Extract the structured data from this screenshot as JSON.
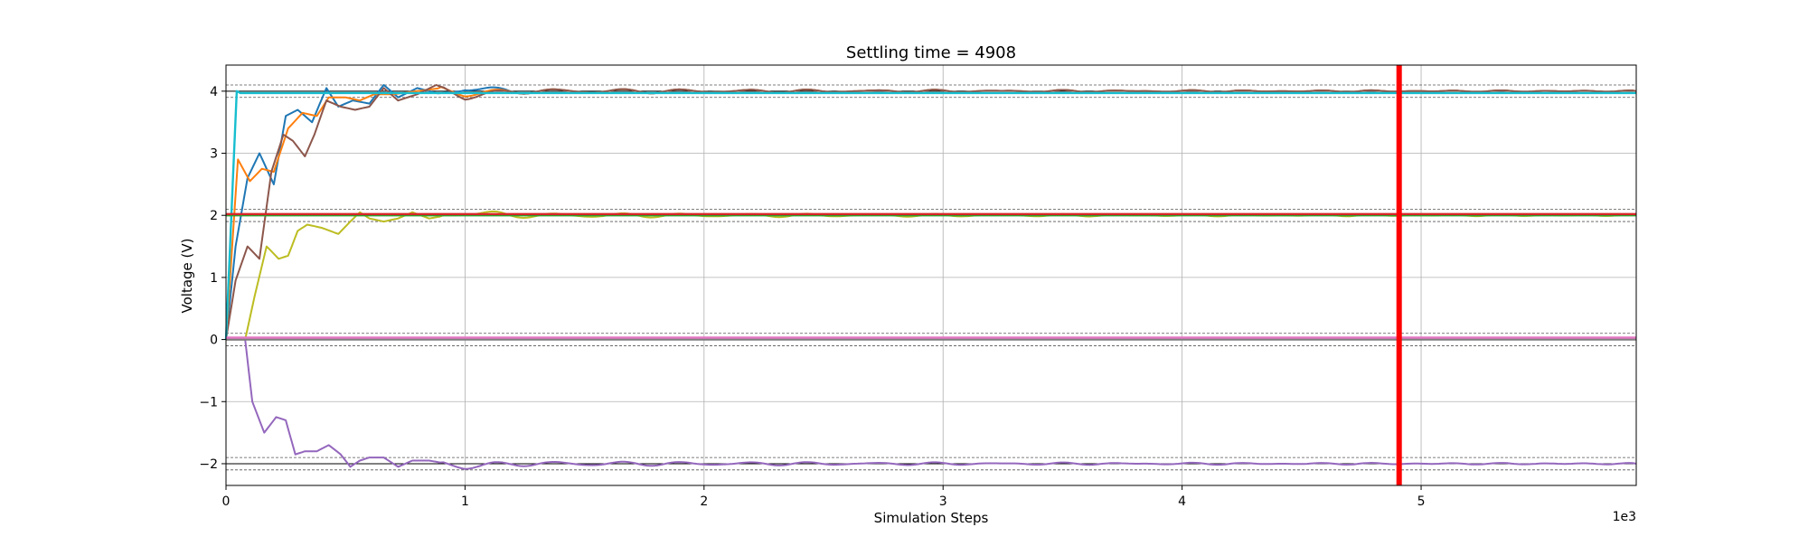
{
  "chart_data": {
    "type": "line",
    "title": "Settling time = 4908",
    "xlabel": "Simulation Steps",
    "ylabel": "Voltage (V)",
    "x_offset_label": "1e3",
    "xlim": [
      0,
      5900
    ],
    "ylim": [
      -2.35,
      4.42
    ],
    "x_ticks": [
      0,
      1000,
      2000,
      3000,
      4000,
      5000
    ],
    "x_tick_labels": [
      "0",
      "1",
      "2",
      "3",
      "4",
      "5"
    ],
    "y_ticks": [
      -2,
      -1,
      0,
      1,
      2,
      3,
      4
    ],
    "y_tick_labels": [
      "−2",
      "−1",
      "0",
      "1",
      "2",
      "3",
      "4"
    ],
    "grid": true,
    "reference_levels": [
      4,
      2,
      0,
      -2
    ],
    "tolerance_band": 0.1,
    "settling_marker": {
      "x": 4908,
      "color": "#ff0000"
    },
    "colors": {
      "blue": "#1f77b4",
      "orange": "#ff7f0e",
      "brown": "#8c564b",
      "olive": "#bcbd22",
      "purple": "#9467bd",
      "cyan": "#17becf",
      "gray": "#7f7f7f",
      "pink": "#e377c2",
      "green": "#2ca02c",
      "red": "#d62728"
    },
    "series": [
      {
        "color": "blue",
        "x": [
          0,
          40,
          90,
          140,
          200,
          250,
          300,
          360,
          420,
          470,
          530,
          600,
          660,
          720,
          800,
          900,
          1000,
          1200,
          1600,
          2000,
          3000,
          4000,
          5000,
          5900
        ],
        "y": [
          0,
          1.5,
          2.6,
          3.0,
          2.5,
          3.6,
          3.7,
          3.5,
          4.05,
          3.75,
          3.85,
          3.8,
          4.1,
          3.9,
          4.05,
          3.95,
          4.05,
          4.0,
          4.0,
          4.0,
          4.0,
          4.0,
          4.0,
          4.0
        ]
      },
      {
        "color": "orange",
        "x": [
          0,
          50,
          100,
          150,
          200,
          260,
          320,
          380,
          430,
          500,
          560,
          620,
          700,
          800,
          900,
          1000,
          1200,
          2000,
          3000,
          4000,
          5000,
          5900
        ],
        "y": [
          0,
          2.9,
          2.55,
          2.75,
          2.7,
          3.4,
          3.65,
          3.6,
          3.9,
          3.9,
          3.85,
          3.95,
          3.95,
          4.0,
          4.05,
          3.95,
          4.0,
          4.0,
          4.0,
          4.0,
          4.0,
          4.0
        ]
      },
      {
        "color": "brown",
        "x": [
          0,
          40,
          90,
          140,
          190,
          240,
          280,
          330,
          370,
          420,
          480,
          540,
          600,
          660,
          720,
          800,
          880,
          1000,
          1200,
          2000,
          3000,
          4000,
          5000,
          5900
        ],
        "y": [
          0,
          0.95,
          1.5,
          1.3,
          2.7,
          3.3,
          3.2,
          2.95,
          3.3,
          3.85,
          3.75,
          3.7,
          3.75,
          4.05,
          3.85,
          3.95,
          4.1,
          3.9,
          4.0,
          4.0,
          4.0,
          4.0,
          4.0,
          4.0
        ]
      },
      {
        "color": "olive",
        "x": [
          0,
          80,
          120,
          170,
          220,
          260,
          300,
          340,
          400,
          470,
          520,
          560,
          600,
          660,
          720,
          780,
          850,
          1000,
          1200,
          2000,
          3000,
          4000,
          5000,
          5900
        ],
        "y": [
          0,
          0,
          0.7,
          1.5,
          1.3,
          1.35,
          1.75,
          1.85,
          1.8,
          1.7,
          1.9,
          2.05,
          1.95,
          1.9,
          1.95,
          2.05,
          1.95,
          2.05,
          2.0,
          2.0,
          2.0,
          2.0,
          2.0,
          2.0
        ]
      },
      {
        "color": "purple",
        "x": [
          0,
          80,
          110,
          160,
          210,
          250,
          290,
          330,
          380,
          430,
          480,
          520,
          560,
          600,
          660,
          720,
          780,
          850,
          1000,
          1200,
          2000,
          3000,
          4000,
          5000,
          5900
        ],
        "y": [
          0,
          0,
          -1.0,
          -1.5,
          -1.25,
          -1.3,
          -1.85,
          -1.8,
          -1.8,
          -1.7,
          -1.85,
          -2.05,
          -1.95,
          -1.9,
          -1.9,
          -2.05,
          -1.95,
          -1.95,
          -2.05,
          -2.0,
          -2.0,
          -2.0,
          -2.0,
          -2.0,
          -2.0
        ]
      },
      {
        "color": "cyan",
        "x": [
          0,
          45,
          60,
          5900
        ],
        "y": [
          0,
          4.0,
          3.97,
          3.97
        ]
      },
      {
        "color": "gray",
        "x": [
          0,
          5900
        ],
        "y": [
          0.0,
          0.0
        ]
      },
      {
        "color": "pink",
        "x": [
          0,
          5900
        ],
        "y": [
          0.03,
          0.03
        ]
      },
      {
        "color": "green",
        "x": [
          0,
          5900
        ],
        "y": [
          2.0,
          2.0
        ]
      },
      {
        "color": "red",
        "x": [
          0,
          5900
        ],
        "y": [
          2.02,
          2.02
        ]
      }
    ]
  }
}
